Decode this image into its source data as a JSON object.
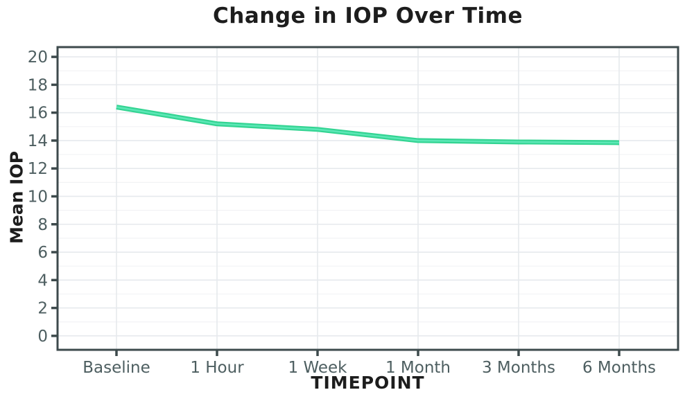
{
  "chart_data": {
    "type": "line",
    "title": "Change in IOP Over Time",
    "xlabel": "TIMEPOINT",
    "ylabel": "Mean IOP",
    "categories": [
      "Baseline",
      "1 Hour",
      "1 Week",
      "1 Month",
      "3 Months",
      "6 Months"
    ],
    "series": [
      {
        "name": "Mean IOP",
        "values": [
          16.4,
          15.2,
          14.8,
          14.0,
          13.9,
          13.85
        ]
      }
    ],
    "y_ticks": [
      0,
      2,
      4,
      6,
      8,
      10,
      12,
      14,
      16,
      18,
      20
    ],
    "ylim": [
      -1,
      20.7
    ],
    "grid": true,
    "minor_grid": true,
    "legend": false,
    "markers": false
  },
  "theme": {
    "background": "#ffffff",
    "line_color": "#33d492",
    "line_highlight": "#5ce7b6",
    "grid_major_color": "#e6e9ed",
    "grid_minor_color": "#f2f3f5",
    "axis_color": "#3d4a4c",
    "tick_label_color": "#4d5e60",
    "text_color": "#1d1d1d"
  }
}
